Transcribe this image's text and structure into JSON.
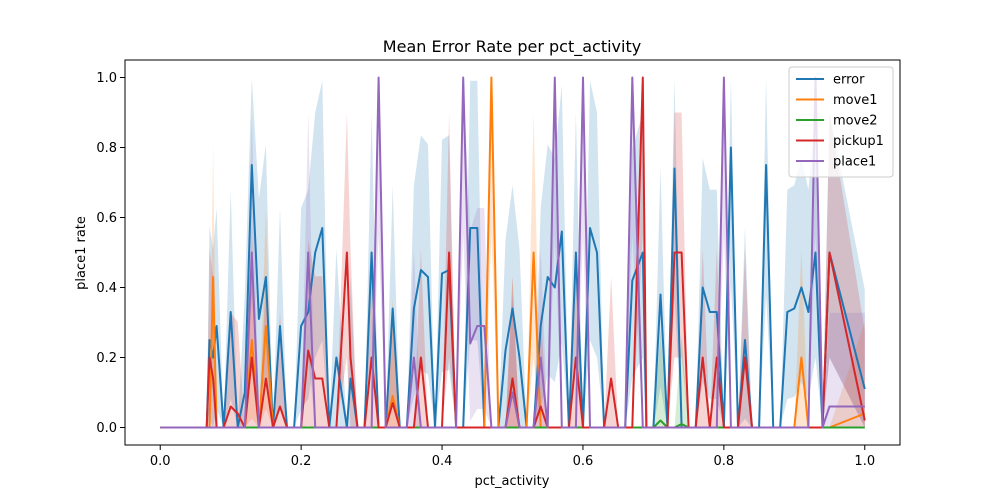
{
  "chart_data": {
    "type": "line",
    "title": "Mean Error Rate per pct_activity",
    "xlabel": "pct_activity",
    "ylabel": "place1 rate",
    "xlim": [
      -0.05,
      1.05
    ],
    "ylim": [
      -0.05,
      1.05
    ],
    "xticks": [
      "0.0",
      "0.2",
      "0.4",
      "0.6",
      "0.8",
      "1.0"
    ],
    "xtick_values": [
      0.0,
      0.2,
      0.4,
      0.6,
      0.8,
      1.0
    ],
    "yticks": [
      "0.0",
      "0.2",
      "0.4",
      "0.6",
      "0.8",
      "1.0"
    ],
    "ytick_values": [
      0.0,
      0.2,
      0.4,
      0.6,
      0.8,
      1.0
    ],
    "grid": false,
    "legend_position": "top-right",
    "x": [
      0.0,
      0.066,
      0.07,
      0.075,
      0.08,
      0.09,
      0.1,
      0.11,
      0.12,
      0.13,
      0.14,
      0.15,
      0.16,
      0.17,
      0.18,
      0.19,
      0.2,
      0.21,
      0.22,
      0.23,
      0.24,
      0.25,
      0.265,
      0.27,
      0.28,
      0.29,
      0.3,
      0.31,
      0.32,
      0.33,
      0.34,
      0.35,
      0.36,
      0.37,
      0.38,
      0.39,
      0.4,
      0.41,
      0.42,
      0.43,
      0.44,
      0.45,
      0.46,
      0.47,
      0.48,
      0.49,
      0.5,
      0.51,
      0.52,
      0.53,
      0.54,
      0.55,
      0.56,
      0.57,
      0.58,
      0.59,
      0.6,
      0.61,
      0.62,
      0.63,
      0.64,
      0.65,
      0.66,
      0.67,
      0.685,
      0.69,
      0.7,
      0.71,
      0.72,
      0.73,
      0.74,
      0.75,
      0.76,
      0.77,
      0.78,
      0.79,
      0.8,
      0.81,
      0.82,
      0.83,
      0.84,
      0.85,
      0.86,
      0.87,
      0.88,
      0.89,
      0.9,
      0.91,
      0.92,
      0.93,
      0.94,
      0.95,
      1.0
    ],
    "series": [
      {
        "name": "error",
        "color": "#1f77b4",
        "values": [
          0.0,
          0.0,
          0.25,
          0.2,
          0.29,
          0.0,
          0.33,
          0.0,
          0.1,
          0.75,
          0.31,
          0.43,
          0.0,
          0.29,
          0.0,
          0.0,
          0.29,
          0.33,
          0.5,
          0.57,
          0.0,
          0.2,
          0.0,
          0.14,
          0.0,
          0.0,
          0.5,
          0.0,
          0.0,
          0.34,
          0.0,
          0.0,
          0.34,
          0.45,
          0.43,
          0.0,
          0.44,
          0.45,
          0.0,
          0.0,
          0.57,
          0.57,
          0.0,
          0.0,
          0.0,
          0.22,
          0.34,
          0.2,
          0.0,
          0.0,
          0.29,
          0.43,
          0.4,
          0.56,
          0.0,
          0.5,
          0.0,
          0.57,
          0.5,
          0.0,
          0.0,
          0.0,
          0.0,
          0.42,
          0.5,
          0.0,
          0.0,
          0.38,
          0.0,
          0.74,
          0.0,
          0.0,
          0.0,
          0.4,
          0.33,
          0.33,
          0.0,
          0.8,
          0.0,
          0.25,
          0.0,
          0.0,
          0.75,
          0.0,
          0.0,
          0.33,
          0.34,
          0.4,
          0.33,
          0.5,
          0.0,
          0.5,
          0.11
        ]
      },
      {
        "name": "move1",
        "color": "#ff7f0e",
        "values": [
          0.0,
          0.0,
          0.0,
          0.43,
          0.0,
          0.0,
          0.0,
          0.0,
          0.0,
          0.25,
          0.0,
          0.29,
          0.0,
          0.0,
          0.0,
          0.0,
          0.0,
          0.0,
          0.0,
          0.0,
          0.0,
          0.0,
          0.0,
          0.0,
          0.0,
          0.0,
          0.0,
          0.0,
          0.0,
          0.09,
          0.0,
          0.0,
          0.0,
          0.0,
          0.0,
          0.0,
          0.0,
          0.0,
          0.0,
          0.0,
          0.0,
          0.0,
          0.0,
          1.0,
          0.0,
          0.0,
          0.14,
          0.0,
          0.0,
          0.5,
          0.0,
          0.0,
          0.0,
          0.0,
          0.0,
          0.0,
          0.0,
          0.0,
          0.0,
          0.0,
          0.0,
          0.0,
          0.0,
          0.0,
          0.0,
          0.0,
          0.0,
          0.0,
          0.0,
          0.0,
          0.0,
          0.0,
          0.0,
          0.0,
          0.0,
          0.0,
          0.0,
          0.0,
          0.0,
          0.0,
          0.0,
          0.0,
          0.0,
          0.0,
          0.0,
          0.0,
          0.0,
          0.2,
          0.0,
          0.0,
          0.0,
          0.0,
          0.04
        ]
      },
      {
        "name": "move2",
        "color": "#2ca02c",
        "values": [
          0.0,
          0.0,
          0.0,
          0.0,
          0.0,
          0.0,
          0.0,
          0.0,
          0.0,
          0.0,
          0.0,
          0.0,
          0.0,
          0.0,
          0.0,
          0.0,
          0.0,
          0.0,
          0.0,
          0.0,
          0.0,
          0.0,
          0.0,
          0.0,
          0.0,
          0.0,
          0.0,
          0.0,
          0.0,
          0.0,
          0.0,
          0.0,
          0.0,
          0.0,
          0.0,
          0.0,
          0.0,
          0.0,
          0.0,
          0.0,
          0.0,
          0.0,
          0.0,
          0.0,
          0.0,
          0.0,
          0.0,
          0.0,
          0.0,
          0.0,
          0.0,
          0.0,
          0.0,
          0.0,
          0.0,
          0.0,
          0.0,
          0.0,
          0.0,
          0.0,
          0.0,
          0.0,
          0.0,
          0.0,
          0.0,
          0.0,
          0.0,
          0.02,
          0.0,
          0.0,
          0.01,
          0.0,
          0.0,
          0.0,
          0.0,
          0.0,
          0.0,
          0.0,
          0.0,
          0.0,
          0.0,
          0.0,
          0.0,
          0.0,
          0.0,
          0.0,
          0.0,
          0.0,
          0.0,
          0.0,
          0.0,
          0.0,
          0.0
        ]
      },
      {
        "name": "pickup1",
        "color": "#d62728",
        "values": [
          0.0,
          0.0,
          0.2,
          0.14,
          0.0,
          0.0,
          0.06,
          0.04,
          0.0,
          0.2,
          0.0,
          0.14,
          0.0,
          0.06,
          0.0,
          0.0,
          0.0,
          0.22,
          0.14,
          0.14,
          0.0,
          0.0,
          0.5,
          0.2,
          0.0,
          0.0,
          0.2,
          0.0,
          0.0,
          0.07,
          0.0,
          0.0,
          0.0,
          0.2,
          0.0,
          0.0,
          0.0,
          0.5,
          0.0,
          0.0,
          0.0,
          0.0,
          0.0,
          0.0,
          0.0,
          0.0,
          0.14,
          0.0,
          0.0,
          0.0,
          0.06,
          0.0,
          0.0,
          0.0,
          0.0,
          0.2,
          0.0,
          0.0,
          0.0,
          0.0,
          0.14,
          0.0,
          0.0,
          0.0,
          1.0,
          0.0,
          0.0,
          0.0,
          0.0,
          0.5,
          0.5,
          0.0,
          0.0,
          0.2,
          0.0,
          0.2,
          0.0,
          0.0,
          0.0,
          0.2,
          0.0,
          0.0,
          0.0,
          0.0,
          0.0,
          0.0,
          0.0,
          0.0,
          0.0,
          0.0,
          0.0,
          0.5,
          0.02
        ]
      },
      {
        "name": "place1",
        "color": "#9467bd",
        "values": [
          0.0,
          0.0,
          0.0,
          0.0,
          0.0,
          0.0,
          0.0,
          0.0,
          0.0,
          0.5,
          0.0,
          0.0,
          0.0,
          0.0,
          0.0,
          0.0,
          0.0,
          0.5,
          0.0,
          0.0,
          0.0,
          0.0,
          0.0,
          0.0,
          0.0,
          0.0,
          0.0,
          1.0,
          0.0,
          0.0,
          0.0,
          0.0,
          0.2,
          0.0,
          0.0,
          0.0,
          0.0,
          0.0,
          0.0,
          1.0,
          0.24,
          0.29,
          0.29,
          0.0,
          0.0,
          0.0,
          0.1,
          0.0,
          0.0,
          0.0,
          0.2,
          0.0,
          1.0,
          0.0,
          0.0,
          0.0,
          1.0,
          0.0,
          0.0,
          0.0,
          0.0,
          0.0,
          0.0,
          1.0,
          0.0,
          0.0,
          0.0,
          0.0,
          0.0,
          0.0,
          0.0,
          0.0,
          0.0,
          0.0,
          0.0,
          0.0,
          1.0,
          0.0,
          0.0,
          0.0,
          0.0,
          0.0,
          0.0,
          0.0,
          0.0,
          0.0,
          0.0,
          0.0,
          0.0,
          1.0,
          0.0,
          0.06,
          0.06
        ]
      }
    ]
  }
}
